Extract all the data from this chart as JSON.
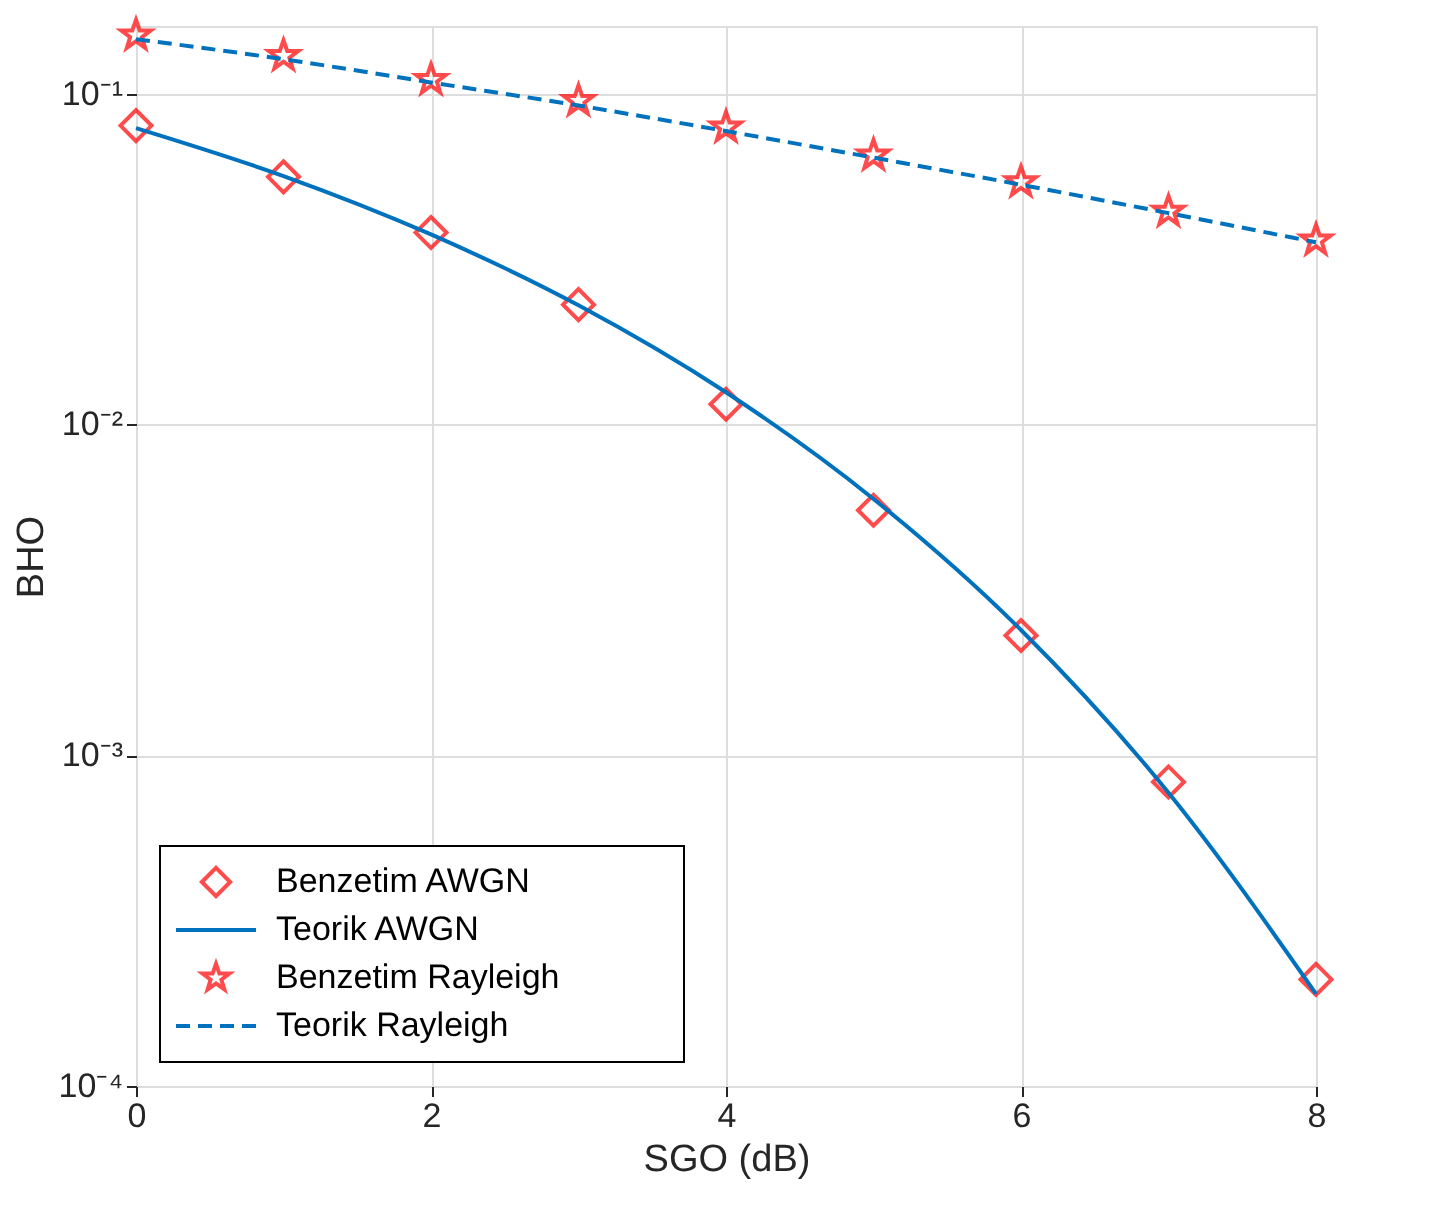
{
  "chart_data": {
    "type": "line",
    "xlabel": "SGO (dB)",
    "ylabel": "BHO",
    "log": "y",
    "x": [
      0,
      1,
      2,
      3,
      4,
      5,
      6,
      7,
      8
    ],
    "series": [
      {
        "name": "Benzetim AWGN",
        "type": "scatter",
        "marker": "diamond",
        "color": "#ff0000",
        "values": [
          0.08,
          0.056,
          0.038,
          0.023,
          0.0115,
          0.0055,
          0.0023,
          0.00083,
          0.00021
        ]
      },
      {
        "name": "Teorik AWGN",
        "marker": "none",
        "line_style": "solid",
        "color": "#0072bd",
        "values": [
          0.0786,
          0.0563,
          0.0375,
          0.0229,
          0.0125,
          0.00595,
          0.00239,
          0.00077,
          0.00019
        ]
      },
      {
        "name": "Benzetim Rayleigh",
        "type": "scatter",
        "marker": "star",
        "color": "#ff0000",
        "values": [
          0.15,
          0.13,
          0.11,
          0.095,
          0.079,
          0.065,
          0.054,
          0.044,
          0.036
        ]
      },
      {
        "name": "Teorik Rayleigh",
        "marker": "none",
        "line_style": "dashed",
        "color": "#0072bd",
        "values": [
          0.146,
          0.127,
          0.108,
          0.092,
          0.077,
          0.064,
          0.053,
          0.0435,
          0.0355
        ]
      }
    ],
    "xlim": [
      0,
      8
    ],
    "xticks": [
      0,
      2,
      4,
      6,
      8
    ],
    "ylim": [
      0.0001,
      0.16
    ],
    "yticks": [
      {
        "value": 0.0001,
        "label": "10⁻⁴"
      },
      {
        "value": 0.001,
        "label": "10⁻³"
      },
      {
        "value": 0.01,
        "label": "10⁻²"
      },
      {
        "value": 0.1,
        "label": "10⁻¹"
      }
    ],
    "grid": true,
    "legend": "bottom left"
  }
}
